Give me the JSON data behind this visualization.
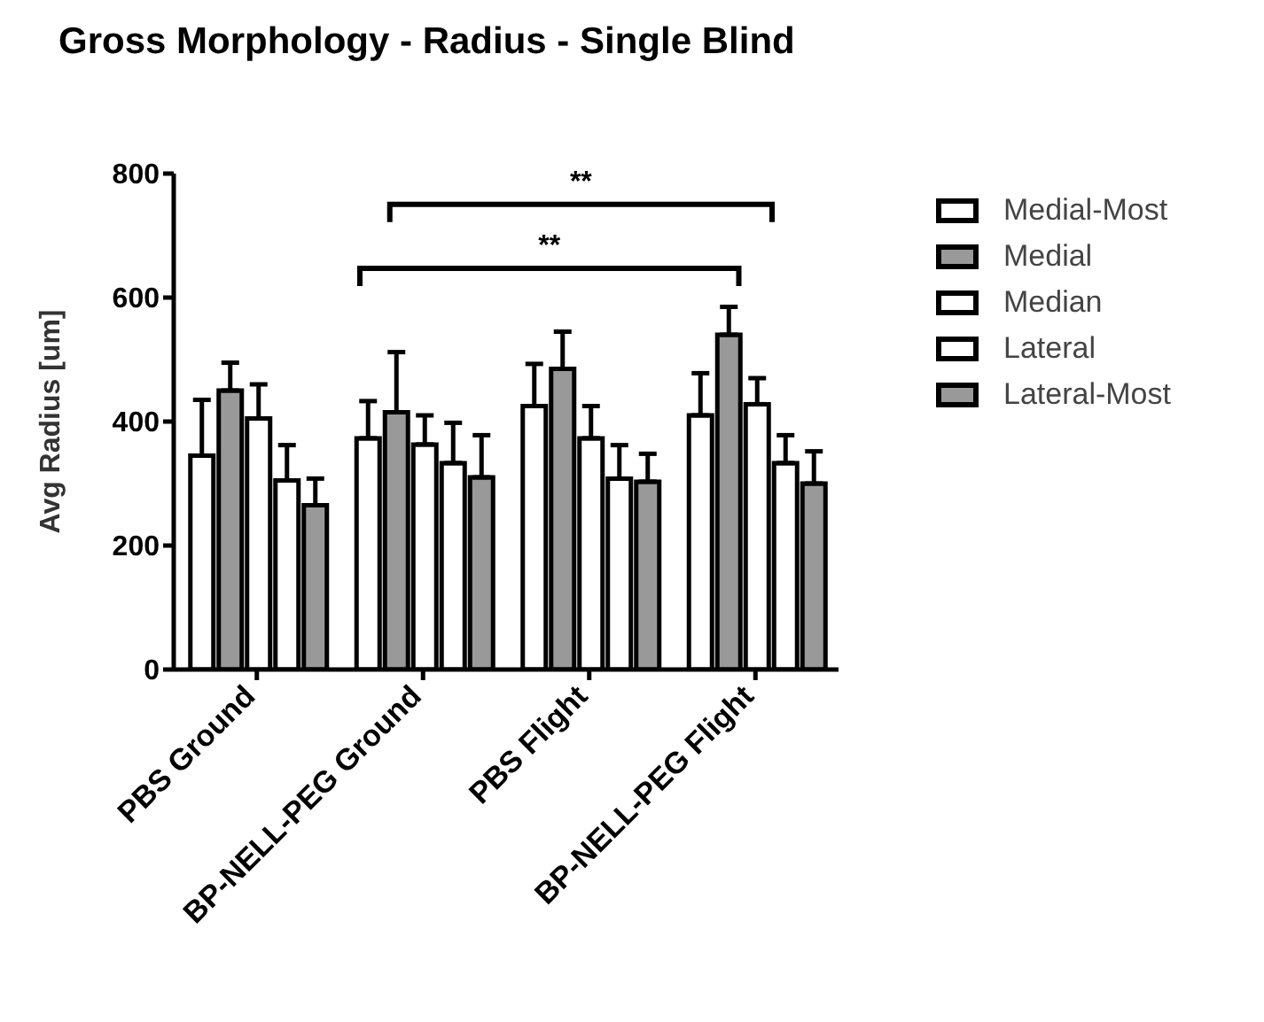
{
  "chart_data": {
    "type": "bar",
    "title": "Gross Morphology - Radius - Single Blind",
    "ylabel": "Avg Radius [um]",
    "categories": [
      "PBS Ground",
      "BP-NELL-PEG Ground",
      "PBS Flight",
      "BP-NELL-PEG Flight"
    ],
    "series": [
      {
        "name": "Medial-Most",
        "color": "#ffffff",
        "values": [
          345,
          373,
          425,
          410
        ],
        "errors": [
          [
            345,
            435
          ],
          [
            373,
            433
          ],
          [
            425,
            493
          ],
          [
            410,
            478
          ]
        ]
      },
      {
        "name": "Medial",
        "color": "#999999",
        "values": [
          450,
          415,
          485,
          540
        ],
        "errors": [
          [
            450,
            495
          ],
          [
            415,
            512
          ],
          [
            485,
            545
          ],
          [
            540,
            585
          ]
        ]
      },
      {
        "name": "Median",
        "color": "#ffffff",
        "values": [
          405,
          363,
          373,
          428
        ],
        "errors": [
          [
            405,
            460
          ],
          [
            363,
            410
          ],
          [
            373,
            425
          ],
          [
            428,
            470
          ]
        ]
      },
      {
        "name": "Lateral",
        "color": "#ffffff",
        "values": [
          305,
          333,
          308,
          333
        ],
        "errors": [
          [
            305,
            362
          ],
          [
            333,
            398
          ],
          [
            308,
            362
          ],
          [
            333,
            378
          ]
        ]
      },
      {
        "name": "Lateral-Most",
        "color": "#999999",
        "values": [
          265,
          310,
          303,
          300
        ],
        "errors": [
          [
            265,
            308
          ],
          [
            310,
            378
          ],
          [
            303,
            348
          ],
          [
            300,
            352
          ]
        ]
      }
    ],
    "ylim": [
      0,
      800
    ],
    "yticks": [
      0,
      200,
      400,
      600,
      800
    ],
    "legend": "top right",
    "annotations": [
      "**",
      "**"
    ]
  }
}
